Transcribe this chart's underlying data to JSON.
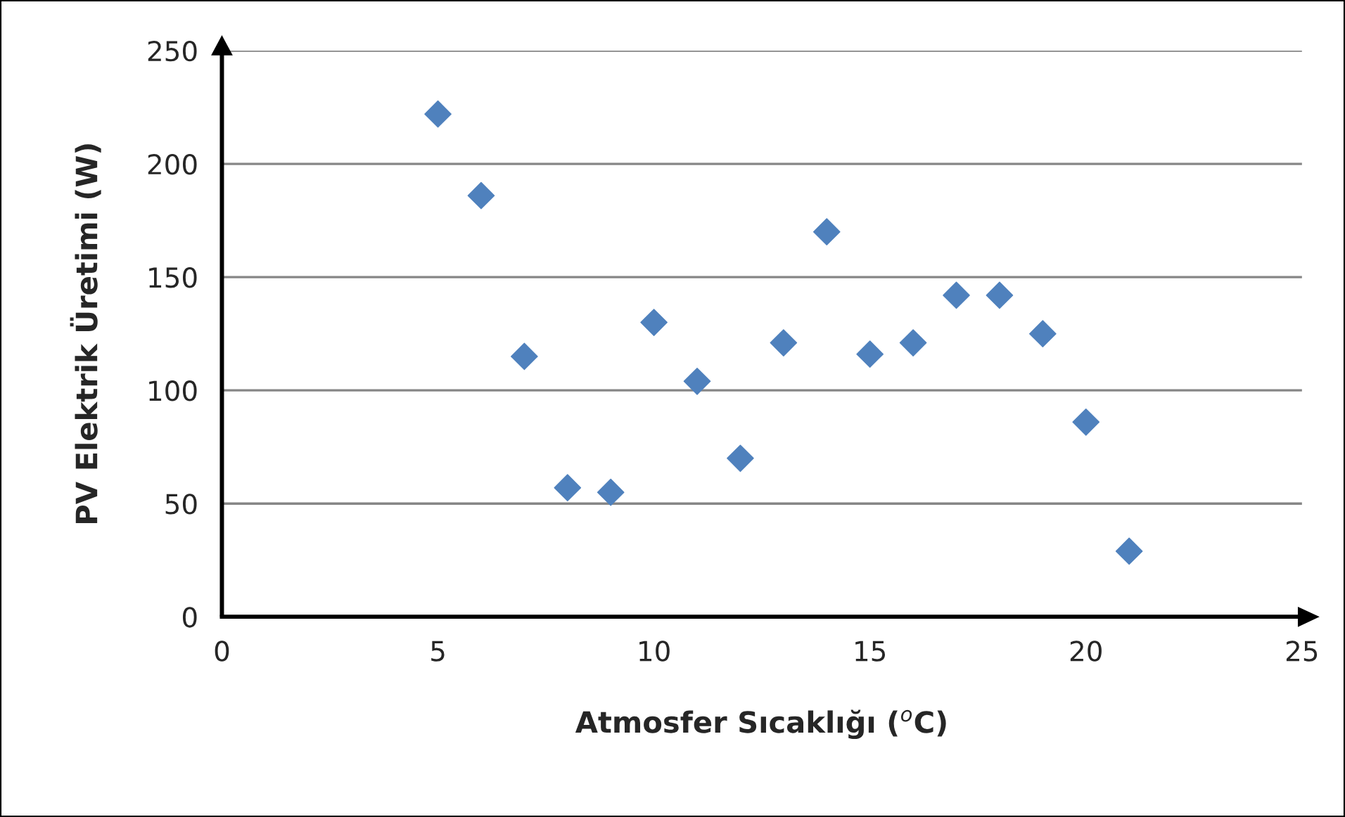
{
  "chart_data": {
    "type": "scatter",
    "xlabel": "Atmosfer Sıcaklığı ($^{o}$C)",
    "ylabel": "PV Elektrik Üretimi (W)",
    "series": [
      {
        "color": "#4f81bd",
        "x": [
          5,
          6,
          7,
          8,
          9,
          10,
          11,
          12,
          13,
          14,
          15,
          16,
          17,
          18,
          19,
          20,
          21
        ],
        "values": [
          222,
          186,
          115,
          57,
          55,
          130,
          104,
          70,
          121,
          170,
          116,
          121,
          142,
          142,
          125,
          86,
          29
        ]
      }
    ],
    "xlim": [
      0,
      25
    ],
    "xticks": [
      0,
      5,
      10,
      15,
      20,
      25
    ],
    "ylim": [
      0,
      250
    ],
    "yticks": [
      0,
      50,
      100,
      150,
      200,
      250
    ],
    "grid": "y",
    "marker": "diamond"
  }
}
